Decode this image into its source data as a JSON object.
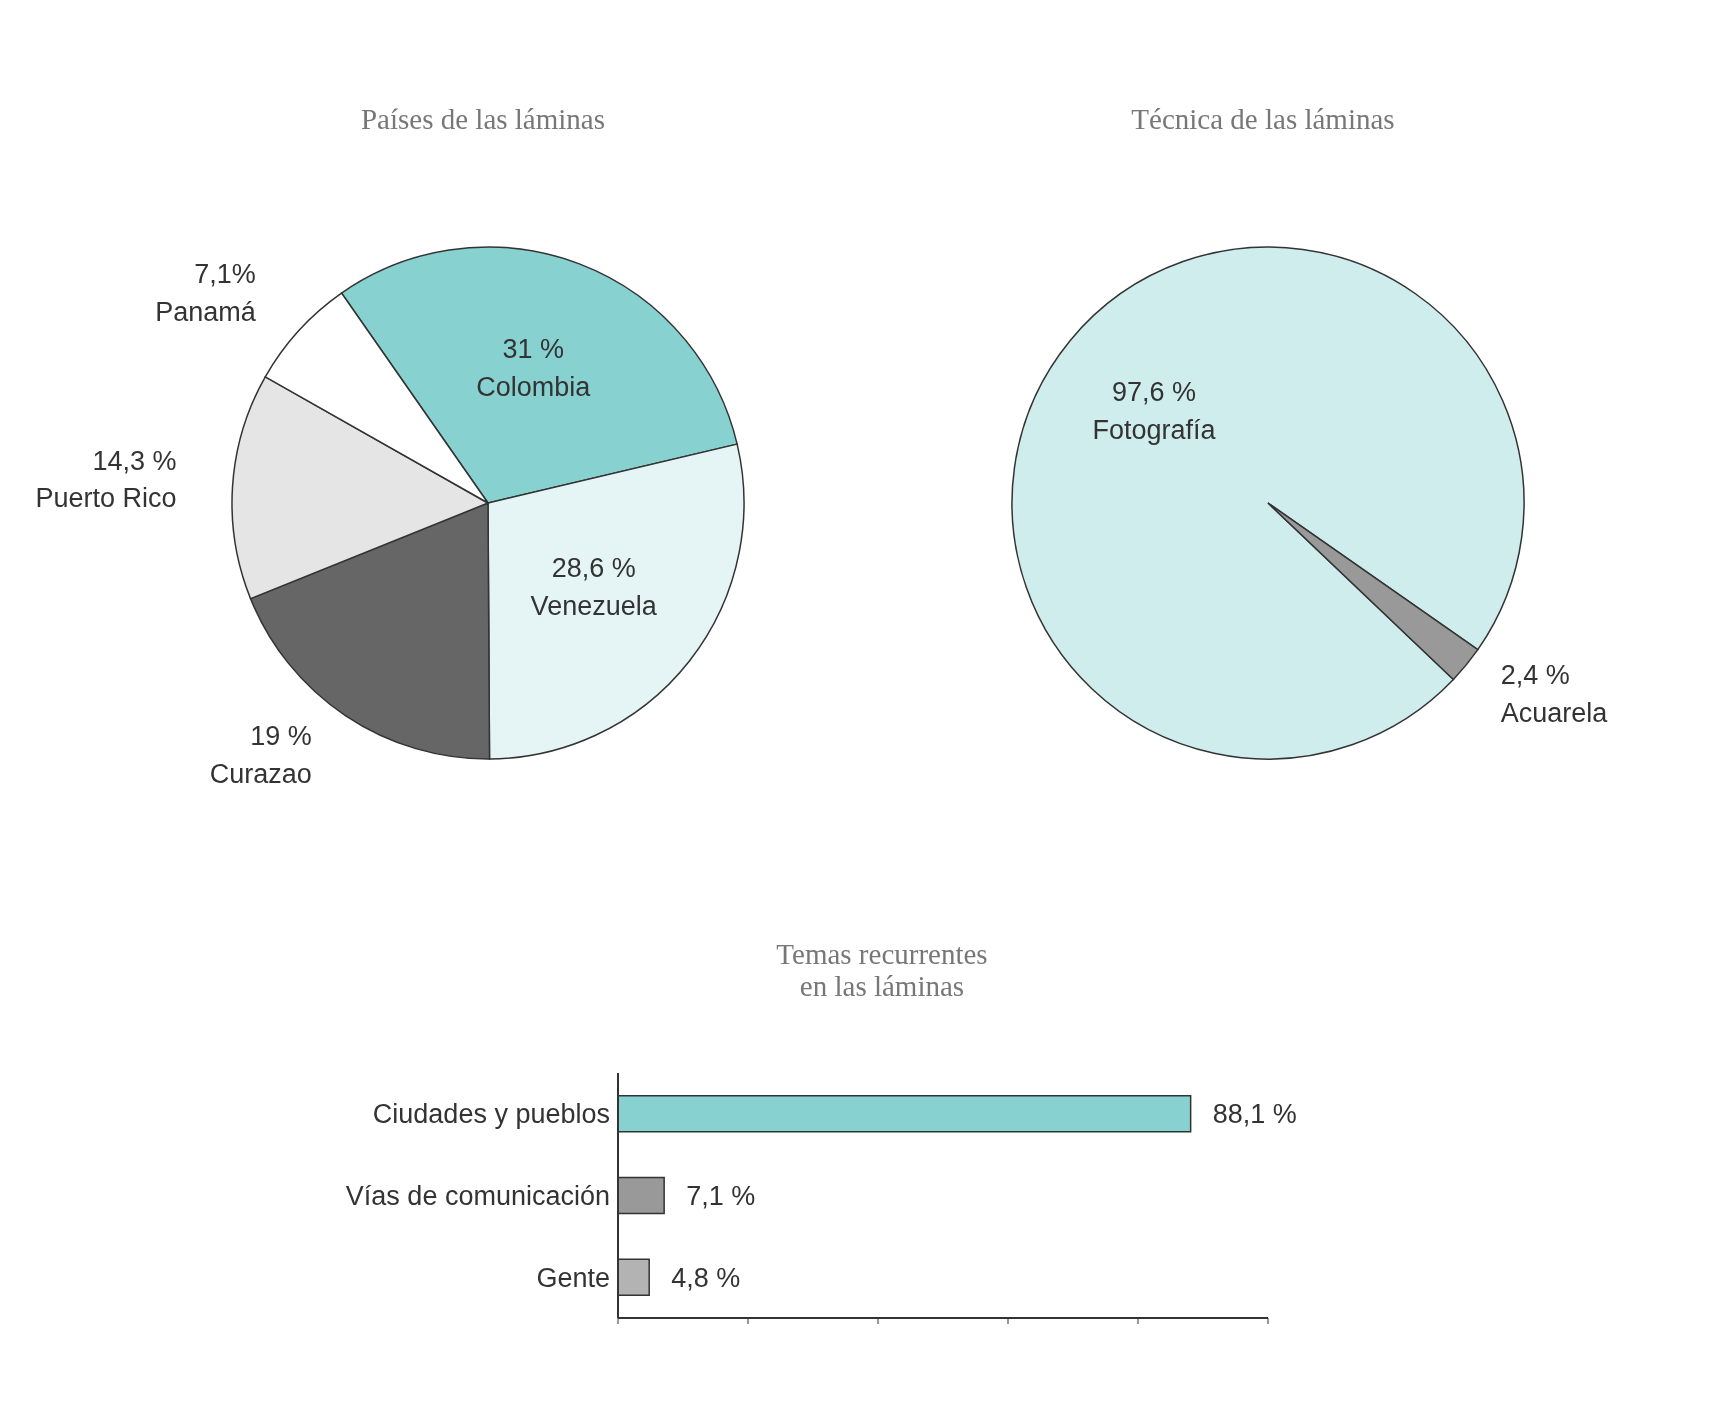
{
  "chart_data": [
    {
      "type": "pie",
      "title": "Países de las láminas",
      "categories": [
        "Colombia",
        "Venezuela",
        "Curazao",
        "Puerto Rico",
        "Panamá"
      ],
      "values": [
        31,
        28.6,
        19,
        14.3,
        7.1
      ],
      "value_labels": [
        "31 %",
        "28,6 %",
        "19 %",
        "14,3 %",
        "7,1%"
      ],
      "colors": [
        "#88d1d1",
        "#e5f5f5",
        "#666666",
        "#e5e5e5",
        "#ffffff"
      ]
    },
    {
      "type": "pie",
      "title": "Técnica de las láminas",
      "categories": [
        "Fotografía",
        "Acuarela"
      ],
      "values": [
        97.6,
        2.4
      ],
      "value_labels": [
        "97,6 %",
        "2,4 %"
      ],
      "colors": [
        "#d0eded",
        "#999999"
      ]
    },
    {
      "type": "bar",
      "orientation": "horizontal",
      "title": "Temas recurrentes\nen las láminas",
      "categories": [
        "Ciudades y pueblos",
        "Vías de comunicación",
        "Gente"
      ],
      "values": [
        88.1,
        7.1,
        4.8
      ],
      "value_labels": [
        "88,1 %",
        "7,1 %",
        "4,8 %"
      ],
      "colors": [
        "#88d1d1",
        "#999999",
        "#b3b3b3"
      ],
      "xlim": [
        0,
        100
      ],
      "xticks": [
        {
          "value": 0,
          "label": null
        },
        {
          "value": 20,
          "label": null
        },
        {
          "value": 40,
          "label": null
        },
        {
          "value": 60,
          "label": null
        },
        {
          "value": 80,
          "label": null
        },
        {
          "value": 100,
          "label": null
        }
      ]
    }
  ]
}
